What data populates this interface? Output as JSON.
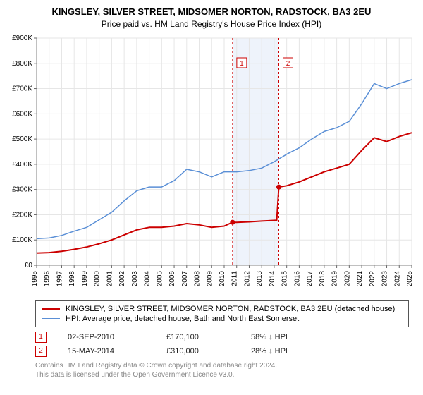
{
  "title": "KINGSLEY, SILVER STREET, MIDSOMER NORTON, RADSTOCK, BA3 2EU",
  "subtitle": "Price paid vs. HM Land Registry's House Price Index (HPI)",
  "chart": {
    "type": "line",
    "background_color": "#ffffff",
    "grid_color": "#e6e6e6",
    "plot_border_color": "#808080",
    "x": {
      "min": 1995,
      "max": 2025,
      "ticks": [
        1995,
        1996,
        1997,
        1998,
        1999,
        2000,
        2001,
        2002,
        2003,
        2004,
        2005,
        2006,
        2007,
        2008,
        2009,
        2010,
        2011,
        2012,
        2013,
        2014,
        2015,
        2016,
        2017,
        2018,
        2019,
        2020,
        2021,
        2022,
        2023,
        2024,
        2025
      ],
      "label_fontsize": 10
    },
    "y": {
      "min": 0,
      "max": 900000,
      "ticks": [
        0,
        100000,
        200000,
        300000,
        400000,
        500000,
        600000,
        700000,
        800000,
        900000
      ],
      "tick_labels": [
        "£0",
        "£100K",
        "£200K",
        "£300K",
        "£400K",
        "£500K",
        "£600K",
        "£700K",
        "£800K",
        "£900K"
      ],
      "label_fontsize": 10
    },
    "marker_bands": [
      {
        "from": 2010.67,
        "to": 2014.37,
        "color": "#eef3fb"
      }
    ],
    "marker_lines": [
      {
        "x": 2010.67,
        "label": "1",
        "color": "#cc0000",
        "dash": "3,3"
      },
      {
        "x": 2014.37,
        "label": "2",
        "color": "#cc0000",
        "dash": "3,3"
      }
    ],
    "series": [
      {
        "name": "KINGSLEY, SILVER STREET, MIDSOMER NORTON, RADSTOCK, BA3 2EU (detached house)",
        "color": "#cc0000",
        "line_width": 2,
        "points": [
          [
            1995,
            48000
          ],
          [
            1996,
            50000
          ],
          [
            1997,
            55000
          ],
          [
            1998,
            63000
          ],
          [
            1999,
            72000
          ],
          [
            2000,
            85000
          ],
          [
            2001,
            100000
          ],
          [
            2002,
            120000
          ],
          [
            2003,
            140000
          ],
          [
            2004,
            150000
          ],
          [
            2005,
            150000
          ],
          [
            2006,
            155000
          ],
          [
            2007,
            165000
          ],
          [
            2008,
            160000
          ],
          [
            2009,
            150000
          ],
          [
            2010,
            155000
          ],
          [
            2010.67,
            170100
          ],
          [
            2011,
            170000
          ],
          [
            2012,
            172000
          ],
          [
            2013,
            175000
          ],
          [
            2014.2,
            178000
          ],
          [
            2014.37,
            310000
          ],
          [
            2015,
            315000
          ],
          [
            2016,
            330000
          ],
          [
            2017,
            350000
          ],
          [
            2018,
            370000
          ],
          [
            2019,
            385000
          ],
          [
            2020,
            400000
          ],
          [
            2021,
            455000
          ],
          [
            2022,
            505000
          ],
          [
            2023,
            490000
          ],
          [
            2024,
            510000
          ],
          [
            2025,
            525000
          ]
        ],
        "markers": [
          {
            "x": 2010.67,
            "y": 170100
          },
          {
            "x": 2014.37,
            "y": 310000
          }
        ]
      },
      {
        "name": "HPI: Average price, detached house, Bath and North East Somerset",
        "color": "#5a8fd6",
        "line_width": 1.5,
        "points": [
          [
            1995,
            105000
          ],
          [
            1996,
            108000
          ],
          [
            1997,
            118000
          ],
          [
            1998,
            135000
          ],
          [
            1999,
            150000
          ],
          [
            2000,
            180000
          ],
          [
            2001,
            210000
          ],
          [
            2002,
            255000
          ],
          [
            2003,
            295000
          ],
          [
            2004,
            310000
          ],
          [
            2005,
            310000
          ],
          [
            2006,
            335000
          ],
          [
            2007,
            380000
          ],
          [
            2008,
            370000
          ],
          [
            2009,
            350000
          ],
          [
            2010,
            370000
          ],
          [
            2011,
            370000
          ],
          [
            2012,
            375000
          ],
          [
            2013,
            385000
          ],
          [
            2014,
            410000
          ],
          [
            2015,
            440000
          ],
          [
            2016,
            465000
          ],
          [
            2017,
            500000
          ],
          [
            2018,
            530000
          ],
          [
            2019,
            545000
          ],
          [
            2020,
            570000
          ],
          [
            2021,
            640000
          ],
          [
            2022,
            720000
          ],
          [
            2023,
            700000
          ],
          [
            2024,
            720000
          ],
          [
            2025,
            735000
          ]
        ]
      }
    ]
  },
  "legend": {
    "items": [
      {
        "label": "KINGSLEY, SILVER STREET, MIDSOMER NORTON, RADSTOCK, BA3 2EU (detached house)",
        "color": "#cc0000",
        "line_width": 2
      },
      {
        "label": "HPI: Average price, detached house, Bath and North East Somerset",
        "color": "#5a8fd6",
        "line_width": 1
      }
    ]
  },
  "annotations": [
    {
      "badge": "1",
      "date": "02-SEP-2010",
      "price": "£170,100",
      "pct": "58% ↓ HPI"
    },
    {
      "badge": "2",
      "date": "15-MAY-2014",
      "price": "£310,000",
      "pct": "28% ↓ HPI"
    }
  ],
  "footer": {
    "line1": "Contains HM Land Registry data © Crown copyright and database right 2024.",
    "line2": "This data is licensed under the Open Government Licence v3.0."
  }
}
